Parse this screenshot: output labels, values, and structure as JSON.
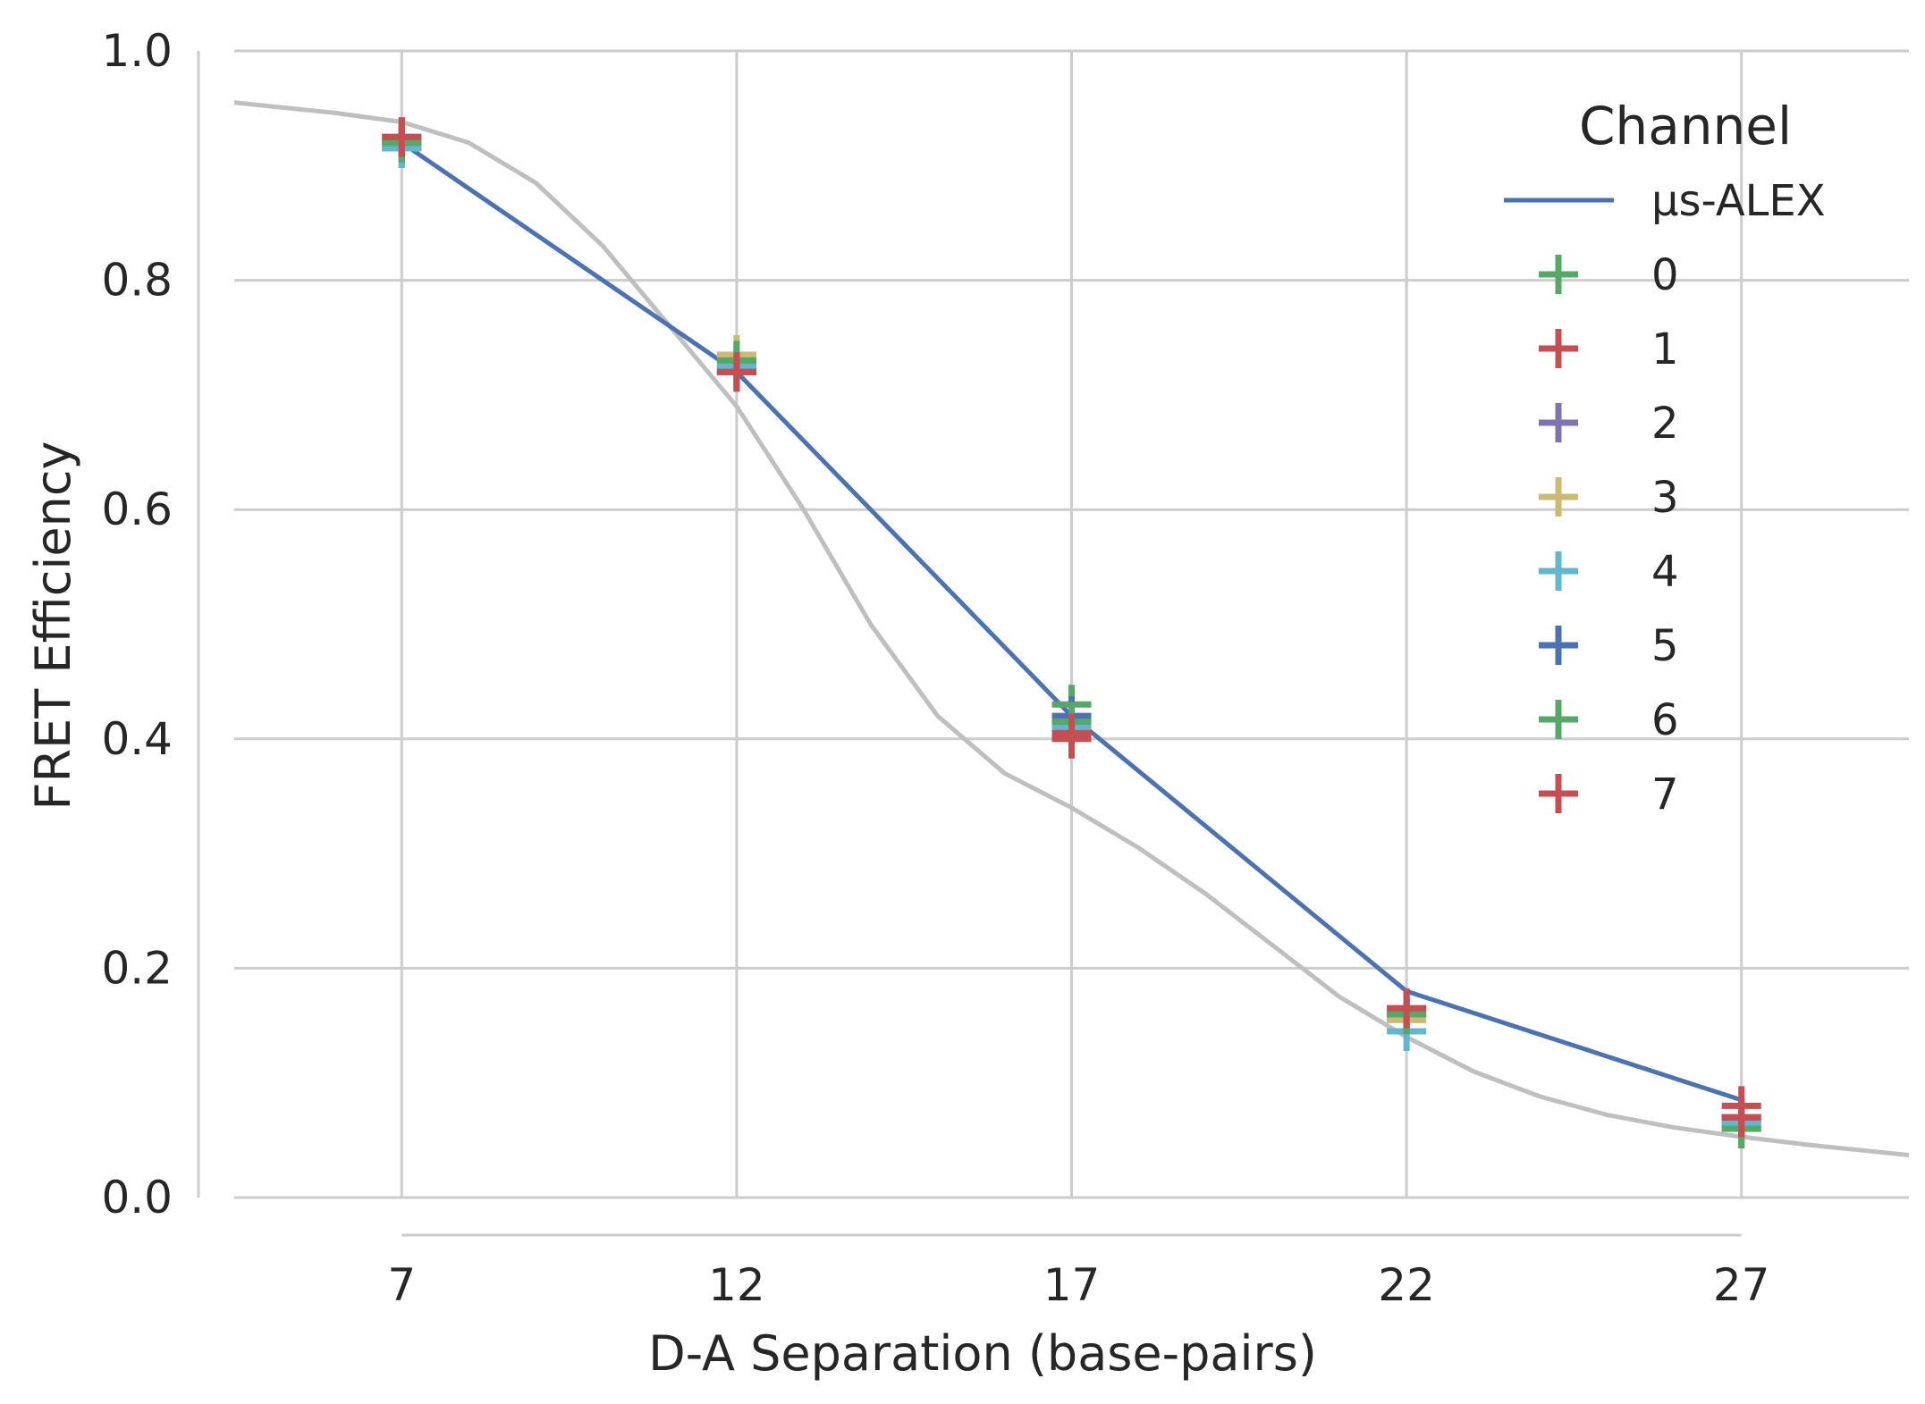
{
  "chart_data": {
    "type": "line",
    "xlabel": "D-A Separation (base-pairs)",
    "ylabel": "FRET Efficiency",
    "xlim": [
      4.5,
      29.5
    ],
    "ylim": [
      0.0,
      1.0
    ],
    "x_ticks": [
      7,
      12,
      17,
      22,
      27
    ],
    "y_ticks": [
      0.0,
      0.2,
      0.4,
      0.6,
      0.8,
      1.0
    ],
    "y_tick_labels": [
      "0.0",
      "0.2",
      "0.4",
      "0.6",
      "0.8",
      "1.0"
    ],
    "grid": true,
    "legend": {
      "title": "Channel",
      "position": "top-right"
    },
    "x": [
      7,
      12,
      17,
      22,
      27
    ],
    "series": [
      {
        "name": "μs-ALEX",
        "kind": "line",
        "color": "#4C72B0",
        "values": [
          0.92,
          0.72,
          0.42,
          0.18,
          0.085
        ]
      },
      {
        "name": "0",
        "kind": "marker",
        "color": "#55A868",
        "values": [
          0.915,
          0.73,
          0.43,
          0.155,
          0.06
        ]
      },
      {
        "name": "1",
        "kind": "marker",
        "color": "#C44E52",
        "values": [
          0.925,
          0.72,
          0.4,
          0.165,
          0.08
        ]
      },
      {
        "name": "2",
        "kind": "marker",
        "color": "#8172B2",
        "values": [
          0.92,
          0.725,
          0.415,
          0.16,
          0.07
        ]
      },
      {
        "name": "3",
        "kind": "marker",
        "color": "#CCB974",
        "values": [
          0.92,
          0.735,
          0.41,
          0.155,
          0.065
        ]
      },
      {
        "name": "4",
        "kind": "marker",
        "color": "#64B5CD",
        "values": [
          0.915,
          0.725,
          0.41,
          0.145,
          0.065
        ]
      },
      {
        "name": "5",
        "kind": "marker",
        "color": "#4C72B0",
        "values": [
          0.92,
          0.72,
          0.42,
          0.16,
          0.07
        ]
      },
      {
        "name": "6",
        "kind": "marker",
        "color": "#55A868",
        "values": [
          0.92,
          0.73,
          0.415,
          0.16,
          0.06
        ]
      },
      {
        "name": "7",
        "kind": "marker",
        "color": "#C44E52",
        "values": [
          0.925,
          0.72,
          0.405,
          0.165,
          0.07
        ]
      }
    ],
    "theory_curve": {
      "color": "#BFBFBF",
      "x": [
        4.5,
        5,
        6,
        7,
        8,
        9,
        10,
        11,
        12,
        13,
        14,
        15,
        16,
        17,
        18,
        19,
        20,
        21,
        22,
        23,
        24,
        25,
        26,
        27,
        28,
        29,
        29.5
      ],
      "values": [
        0.955,
        0.952,
        0.946,
        0.938,
        0.92,
        0.885,
        0.83,
        0.76,
        0.69,
        0.6,
        0.5,
        0.42,
        0.37,
        0.34,
        0.305,
        0.265,
        0.22,
        0.175,
        0.14,
        0.11,
        0.088,
        0.072,
        0.061,
        0.053,
        0.046,
        0.04,
        0.037
      ]
    }
  }
}
